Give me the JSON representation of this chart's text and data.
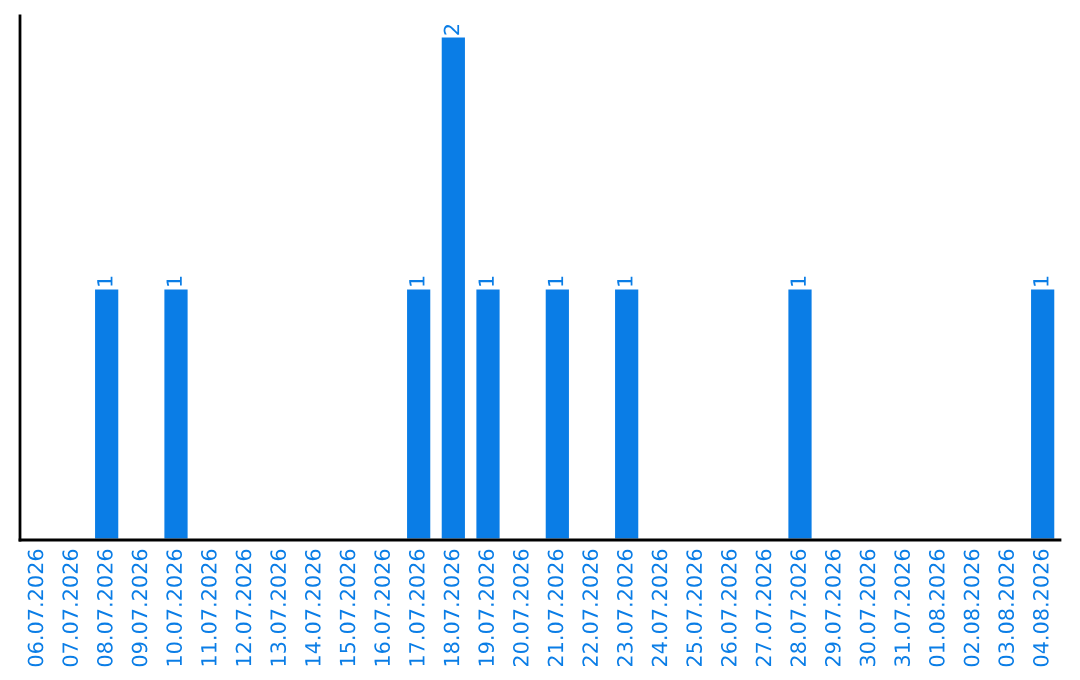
{
  "chart_data": {
    "type": "bar",
    "categories": [
      "06.07.2026",
      "07.07.2026",
      "08.07.2026",
      "09.07.2026",
      "10.07.2026",
      "11.07.2026",
      "12.07.2026",
      "13.07.2026",
      "14.07.2026",
      "15.07.2026",
      "16.07.2026",
      "17.07.2026",
      "18.07.2026",
      "19.07.2026",
      "20.07.2026",
      "21.07.2026",
      "22.07.2026",
      "23.07.2026",
      "24.07.2026",
      "25.07.2026",
      "26.07.2026",
      "27.07.2026",
      "28.07.2026",
      "29.07.2026",
      "30.07.2026",
      "31.07.2026",
      "01.08.2026",
      "02.08.2026",
      "03.08.2026",
      "04.08.2026"
    ],
    "values": [
      0,
      0,
      1,
      0,
      1,
      0,
      0,
      0,
      0,
      0,
      0,
      1,
      2,
      1,
      0,
      1,
      0,
      1,
      0,
      0,
      0,
      0,
      1,
      0,
      0,
      0,
      0,
      0,
      0,
      1
    ],
    "value_labels": [
      null,
      null,
      "1",
      null,
      "1",
      null,
      null,
      null,
      null,
      null,
      null,
      "1",
      "2",
      "1",
      null,
      "1",
      null,
      "1",
      null,
      null,
      null,
      null,
      "1",
      null,
      null,
      null,
      null,
      null,
      null,
      "1"
    ],
    "color": "#0a7de6",
    "tick_labels": "x",
    "grid": false,
    "legend": false
  }
}
